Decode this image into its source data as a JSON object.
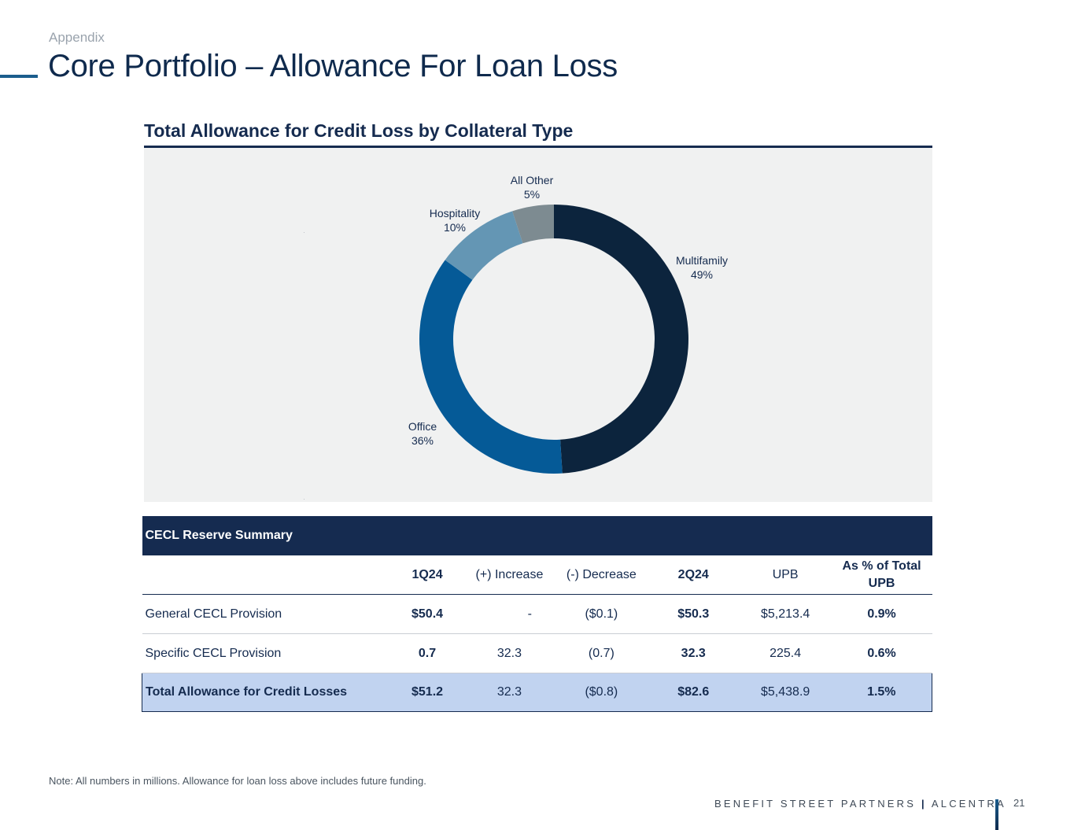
{
  "header": {
    "kicker": "Appendix",
    "title": "Core Portfolio – Allowance For Loan Loss"
  },
  "chart_data": {
    "type": "pie",
    "title": "Total Allowance for Credit Loss by Collateral Type",
    "donut": true,
    "slices": [
      {
        "label": "Multifamily",
        "value": 49,
        "value_label": "49%",
        "color": "#0c243d"
      },
      {
        "label": "Office",
        "value": 36,
        "value_label": "36%",
        "color": "#055a97"
      },
      {
        "label": "Hospitality",
        "value": 10,
        "value_label": "10%",
        "color": "#6496b4"
      },
      {
        "label": "All Other",
        "value": 5,
        "value_label": "5%",
        "color": "#7d8b91"
      }
    ]
  },
  "table": {
    "section_title": "CECL Reserve Summary",
    "columns": [
      "",
      "1Q24",
      "(+) Increase",
      "(-) Decrease",
      "2Q24",
      "UPB",
      "As % of Total UPB"
    ],
    "rows": [
      [
        "General CECL Provision",
        "$50.4",
        "-",
        "($0.1)",
        "$50.3",
        "$5,213.4",
        "0.9%"
      ],
      [
        "Specific CECL Provision",
        "0.7",
        "32.3",
        "(0.7)",
        "32.3",
        "225.4",
        "0.6%"
      ]
    ],
    "total": [
      "Total Allowance for Credit Losses",
      "$51.2",
      "32.3",
      "($0.8)",
      "$82.6",
      "$5,438.9",
      "1.5%"
    ]
  },
  "footer": {
    "note": "Note: All numbers in millions. Allowance for loan loss above includes future funding.",
    "brand_left": "BENEFIT STREET PARTNERS",
    "brand_sep": "|",
    "brand_right": "ALCENTRA",
    "page_number": "21"
  },
  "colors": {
    "navy": "#152b50",
    "total_row_fill": "#c1d3f0",
    "chart_background": "#f0f1f1"
  }
}
